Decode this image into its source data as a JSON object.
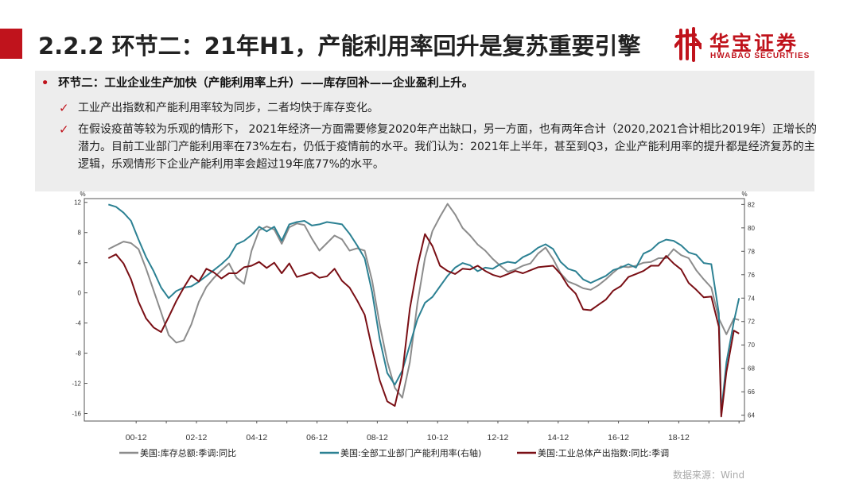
{
  "slide": {
    "title": "2.2.2 环节二：21年H1，产能利用率回升是复苏重要引擎",
    "logo_cn": "华宝证券",
    "logo_en": "HWABAO SECURITIES",
    "bullet": "环节二：工业企业生产加快（产能利用率上升）——库存回补——企业盈利上升。",
    "checks": [
      "工业产出指数和产能利用率较为同步，二者均快于库存变化。",
      "在假设疫苗等较为乐观的情形下，  2021年经济一方面需要修复2020年产出缺口，另一方面，也有两年合计（2020,2021合计相比2019年）正增长的潜力。目前工业部门产能利用率在73%左右，仍低于疫情前的水平。我们认为：2021年上半年，甚至到Q3，企业产能利用率的提升都是经济复苏的主逻辑，乐观情形下企业产能利用率会超过19年底77%的水平。"
    ],
    "source": "数据来源：Wind",
    "accent_color": "#c0131c"
  },
  "chart_data": {
    "type": "line",
    "x_tick_labels": [
      "00-12",
      "02-12",
      "04-12",
      "06-12",
      "08-12",
      "10-12",
      "12-12",
      "14-12",
      "16-12",
      "18-12"
    ],
    "y_left": {
      "unit": "%",
      "ticks": [
        "12",
        "8",
        "4",
        "0",
        "-4",
        "-8",
        "-12",
        "-16"
      ],
      "ylim": [
        -17,
        12.5
      ]
    },
    "y_right": {
      "unit": "%",
      "ticks": [
        "82",
        "80",
        "78",
        "76",
        "74",
        "72",
        "70",
        "68",
        "66",
        "64"
      ],
      "ylim": [
        63.5,
        82.5
      ]
    },
    "grid": false,
    "legend_position": "bottom",
    "series": [
      {
        "name": "美国:库存总额:季调:同比",
        "axis": "left",
        "color": "#8c8c8c",
        "points": [
          [
            2000.0,
            5.8
          ],
          [
            2000.25,
            6.3
          ],
          [
            2000.5,
            6.8
          ],
          [
            2000.75,
            6.6
          ],
          [
            2001.0,
            5.8
          ],
          [
            2001.25,
            3.2
          ],
          [
            2001.5,
            0.3
          ],
          [
            2001.75,
            -2.6
          ],
          [
            2002.0,
            -5.6
          ],
          [
            2002.25,
            -6.6
          ],
          [
            2002.5,
            -6.3
          ],
          [
            2002.75,
            -4.2
          ],
          [
            2003.0,
            -1.2
          ],
          [
            2003.25,
            0.8
          ],
          [
            2003.5,
            2.0
          ],
          [
            2003.75,
            3.0
          ],
          [
            2004.0,
            3.9
          ],
          [
            2004.25,
            2.0
          ],
          [
            2004.5,
            1.2
          ],
          [
            2004.75,
            5.6
          ],
          [
            2005.0,
            8.3
          ],
          [
            2005.25,
            8.8
          ],
          [
            2005.5,
            8.4
          ],
          [
            2005.75,
            6.5
          ],
          [
            2006.0,
            8.7
          ],
          [
            2006.25,
            9.2
          ],
          [
            2006.5,
            9.0
          ],
          [
            2006.75,
            7.2
          ],
          [
            2007.0,
            5.6
          ],
          [
            2007.25,
            6.6
          ],
          [
            2007.5,
            7.6
          ],
          [
            2007.75,
            7.1
          ],
          [
            2008.0,
            5.6
          ],
          [
            2008.25,
            5.9
          ],
          [
            2008.5,
            5.6
          ],
          [
            2008.75,
            1.6
          ],
          [
            2009.0,
            -4.2
          ],
          [
            2009.25,
            -9.1
          ],
          [
            2009.5,
            -12.6
          ],
          [
            2009.75,
            -13.9
          ],
          [
            2010.0,
            -9.2
          ],
          [
            2010.25,
            -1.4
          ],
          [
            2010.5,
            4.6
          ],
          [
            2010.75,
            8.2
          ],
          [
            2011.0,
            10.1
          ],
          [
            2011.25,
            11.8
          ],
          [
            2011.5,
            10.4
          ],
          [
            2011.75,
            8.6
          ],
          [
            2012.0,
            7.6
          ],
          [
            2012.25,
            6.4
          ],
          [
            2012.5,
            5.6
          ],
          [
            2012.75,
            4.5
          ],
          [
            2013.0,
            3.6
          ],
          [
            2013.25,
            2.8
          ],
          [
            2013.5,
            3.1
          ],
          [
            2013.75,
            3.6
          ],
          [
            2014.0,
            3.9
          ],
          [
            2014.25,
            5.2
          ],
          [
            2014.5,
            6.0
          ],
          [
            2014.75,
            4.5
          ],
          [
            2015.0,
            2.6
          ],
          [
            2015.25,
            1.5
          ],
          [
            2015.5,
            1.1
          ],
          [
            2015.75,
            0.6
          ],
          [
            2016.0,
            0.4
          ],
          [
            2016.25,
            1.0
          ],
          [
            2016.5,
            1.8
          ],
          [
            2016.75,
            2.7
          ],
          [
            2017.0,
            3.5
          ],
          [
            2017.25,
            3.4
          ],
          [
            2017.5,
            3.6
          ],
          [
            2017.75,
            4.0
          ],
          [
            2018.0,
            4.1
          ],
          [
            2018.25,
            4.6
          ],
          [
            2018.5,
            4.6
          ],
          [
            2018.75,
            5.8
          ],
          [
            2019.0,
            5.0
          ],
          [
            2019.25,
            4.6
          ],
          [
            2019.5,
            3.0
          ],
          [
            2019.75,
            1.8
          ],
          [
            2020.0,
            0.7
          ],
          [
            2020.25,
            -3.4
          ],
          [
            2020.5,
            -5.5
          ],
          [
            2020.75,
            -3.4
          ],
          [
            2020.92,
            -3.6
          ]
        ]
      },
      {
        "name": "美国:全部工业部门产能利用率(右轴)",
        "axis": "right",
        "color": "#2c8193",
        "points": [
          [
            2000.0,
            82.0
          ],
          [
            2000.25,
            81.8
          ],
          [
            2000.5,
            81.3
          ],
          [
            2000.75,
            80.6
          ],
          [
            2001.0,
            79.0
          ],
          [
            2001.25,
            77.5
          ],
          [
            2001.5,
            76.3
          ],
          [
            2001.75,
            74.9
          ],
          [
            2002.0,
            74.0
          ],
          [
            2002.25,
            74.6
          ],
          [
            2002.5,
            74.9
          ],
          [
            2002.75,
            75.0
          ],
          [
            2003.0,
            75.4
          ],
          [
            2003.25,
            75.9
          ],
          [
            2003.5,
            76.4
          ],
          [
            2003.75,
            76.9
          ],
          [
            2004.0,
            77.5
          ],
          [
            2004.25,
            78.6
          ],
          [
            2004.5,
            78.9
          ],
          [
            2004.75,
            79.4
          ],
          [
            2005.0,
            80.1
          ],
          [
            2005.25,
            79.7
          ],
          [
            2005.5,
            80.1
          ],
          [
            2005.75,
            78.9
          ],
          [
            2006.0,
            80.3
          ],
          [
            2006.25,
            80.5
          ],
          [
            2006.5,
            80.6
          ],
          [
            2006.75,
            80.2
          ],
          [
            2007.0,
            80.3
          ],
          [
            2007.25,
            80.5
          ],
          [
            2007.5,
            80.4
          ],
          [
            2007.75,
            80.3
          ],
          [
            2008.0,
            79.5
          ],
          [
            2008.25,
            78.5
          ],
          [
            2008.5,
            77.4
          ],
          [
            2008.75,
            74.5
          ],
          [
            2009.0,
            70.5
          ],
          [
            2009.25,
            67.6
          ],
          [
            2009.5,
            66.6
          ],
          [
            2009.75,
            67.8
          ],
          [
            2010.0,
            70.0
          ],
          [
            2010.25,
            72.2
          ],
          [
            2010.5,
            73.6
          ],
          [
            2010.75,
            74.1
          ],
          [
            2011.0,
            75.0
          ],
          [
            2011.25,
            75.9
          ],
          [
            2011.5,
            76.6
          ],
          [
            2011.75,
            77.0
          ],
          [
            2012.0,
            76.8
          ],
          [
            2012.25,
            76.3
          ],
          [
            2012.5,
            76.6
          ],
          [
            2012.75,
            76.5
          ],
          [
            2013.0,
            76.9
          ],
          [
            2013.25,
            77.1
          ],
          [
            2013.5,
            77.0
          ],
          [
            2013.75,
            77.5
          ],
          [
            2014.0,
            77.8
          ],
          [
            2014.25,
            78.3
          ],
          [
            2014.5,
            78.6
          ],
          [
            2014.75,
            78.2
          ],
          [
            2015.0,
            77.1
          ],
          [
            2015.25,
            76.5
          ],
          [
            2015.5,
            76.3
          ],
          [
            2015.75,
            75.6
          ],
          [
            2016.0,
            75.3
          ],
          [
            2016.25,
            75.6
          ],
          [
            2016.5,
            75.9
          ],
          [
            2016.75,
            76.4
          ],
          [
            2017.0,
            76.6
          ],
          [
            2017.25,
            76.9
          ],
          [
            2017.5,
            76.6
          ],
          [
            2017.75,
            77.8
          ],
          [
            2018.0,
            78.1
          ],
          [
            2018.25,
            78.7
          ],
          [
            2018.5,
            79.0
          ],
          [
            2018.75,
            78.9
          ],
          [
            2019.0,
            78.5
          ],
          [
            2019.25,
            77.9
          ],
          [
            2019.5,
            77.7
          ],
          [
            2019.75,
            77.0
          ],
          [
            2020.0,
            76.9
          ],
          [
            2020.25,
            72.7
          ],
          [
            2020.33,
            64.2
          ],
          [
            2020.5,
            68.5
          ],
          [
            2020.75,
            72.0
          ],
          [
            2020.92,
            74.0
          ]
        ]
      },
      {
        "name": "美国:工业总体产出指数:同比:季调",
        "axis": "left",
        "color": "#7a0f15",
        "points": [
          [
            2000.0,
            4.6
          ],
          [
            2000.25,
            5.1
          ],
          [
            2000.5,
            3.9
          ],
          [
            2000.75,
            1.8
          ],
          [
            2001.0,
            -1.2
          ],
          [
            2001.25,
            -3.4
          ],
          [
            2001.5,
            -4.6
          ],
          [
            2001.75,
            -5.2
          ],
          [
            2002.0,
            -3.2
          ],
          [
            2002.25,
            -1.1
          ],
          [
            2002.5,
            0.7
          ],
          [
            2002.75,
            2.3
          ],
          [
            2003.0,
            1.5
          ],
          [
            2003.25,
            3.2
          ],
          [
            2003.5,
            2.7
          ],
          [
            2003.75,
            1.9
          ],
          [
            2004.0,
            2.6
          ],
          [
            2004.25,
            2.6
          ],
          [
            2004.5,
            3.4
          ],
          [
            2004.75,
            3.6
          ],
          [
            2005.0,
            4.1
          ],
          [
            2005.25,
            3.3
          ],
          [
            2005.5,
            4.0
          ],
          [
            2005.75,
            2.6
          ],
          [
            2006.0,
            3.9
          ],
          [
            2006.25,
            2.1
          ],
          [
            2006.5,
            2.4
          ],
          [
            2006.75,
            2.7
          ],
          [
            2007.0,
            2.0
          ],
          [
            2007.25,
            2.2
          ],
          [
            2007.5,
            3.2
          ],
          [
            2007.75,
            1.6
          ],
          [
            2008.0,
            0.7
          ],
          [
            2008.25,
            -1.0
          ],
          [
            2008.5,
            -2.9
          ],
          [
            2008.75,
            -7.4
          ],
          [
            2009.0,
            -11.6
          ],
          [
            2009.25,
            -14.4
          ],
          [
            2009.5,
            -15.0
          ],
          [
            2009.75,
            -10.7
          ],
          [
            2010.0,
            -2.1
          ],
          [
            2010.25,
            3.5
          ],
          [
            2010.5,
            7.8
          ],
          [
            2010.75,
            6.2
          ],
          [
            2011.0,
            3.6
          ],
          [
            2011.25,
            2.9
          ],
          [
            2011.5,
            2.5
          ],
          [
            2011.75,
            3.2
          ],
          [
            2012.0,
            3.1
          ],
          [
            2012.25,
            3.6
          ],
          [
            2012.5,
            2.9
          ],
          [
            2012.75,
            2.4
          ],
          [
            2013.0,
            2.1
          ],
          [
            2013.25,
            2.5
          ],
          [
            2013.5,
            2.9
          ],
          [
            2013.75,
            2.6
          ],
          [
            2014.0,
            3.0
          ],
          [
            2014.25,
            3.4
          ],
          [
            2014.5,
            3.5
          ],
          [
            2014.75,
            3.6
          ],
          [
            2015.0,
            2.5
          ],
          [
            2015.25,
            0.9
          ],
          [
            2015.5,
            -0.1
          ],
          [
            2015.75,
            -2.2
          ],
          [
            2016.0,
            -2.3
          ],
          [
            2016.25,
            -1.6
          ],
          [
            2016.5,
            -0.9
          ],
          [
            2016.75,
            0.3
          ],
          [
            2017.0,
            0.9
          ],
          [
            2017.25,
            2.1
          ],
          [
            2017.5,
            2.5
          ],
          [
            2017.75,
            2.9
          ],
          [
            2018.0,
            3.6
          ],
          [
            2018.25,
            3.6
          ],
          [
            2018.5,
            4.9
          ],
          [
            2018.75,
            3.9
          ],
          [
            2019.0,
            3.1
          ],
          [
            2019.25,
            1.3
          ],
          [
            2019.5,
            0.4
          ],
          [
            2019.75,
            -0.6
          ],
          [
            2020.0,
            -0.5
          ],
          [
            2020.25,
            -4.5
          ],
          [
            2020.33,
            -16.4
          ],
          [
            2020.5,
            -10.5
          ],
          [
            2020.75,
            -5.0
          ],
          [
            2020.92,
            -5.4
          ]
        ]
      }
    ]
  }
}
